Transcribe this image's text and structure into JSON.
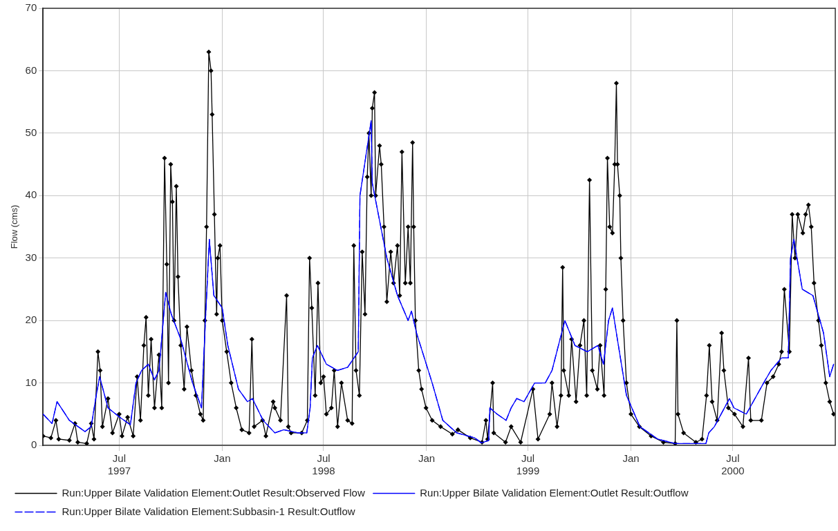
{
  "chart_data": {
    "type": "line",
    "ylabel": "Flow (cms)",
    "xlim": [
      "1997-02-15",
      "2000-12-31"
    ],
    "ylim": [
      0,
      70
    ],
    "yticks": [
      0,
      10,
      20,
      30,
      40,
      50,
      60,
      70
    ],
    "xticks": [
      {
        "value": "1997-07-01",
        "label": "Jul\n1997"
      },
      {
        "value": "1998-01-01",
        "label": "Jan"
      },
      {
        "value": "1998-07-01",
        "label": "Jul\n1998"
      },
      {
        "value": "1999-01-01",
        "label": "Jan"
      },
      {
        "value": "1999-07-01",
        "label": "Jul\n1999"
      },
      {
        "value": "2000-01-01",
        "label": "Jan"
      },
      {
        "value": "2000-07-01",
        "label": "Jul\n2000"
      }
    ],
    "grid": true,
    "legend": "bottom",
    "series": [
      {
        "name": "Run:Upper Bilate Validation Element:Outlet Result:Observed Flow",
        "color": "#000000",
        "marker": "diamond",
        "line_style": "solid",
        "x": [
          "1997-02-15",
          "1997-03-01",
          "1997-03-10",
          "1997-03-15",
          "1997-04-03",
          "1997-04-13",
          "1997-04-18",
          "1997-05-04",
          "1997-05-12",
          "1997-05-17",
          "1997-05-24",
          "1997-05-28",
          "1997-06-01",
          "1997-06-11",
          "1997-06-19",
          "1997-07-01",
          "1997-07-06",
          "1997-07-16",
          "1997-07-26",
          "1997-08-02",
          "1997-08-08",
          "1997-08-14",
          "1997-08-18",
          "1997-08-22",
          "1997-08-27",
          "1997-09-02",
          "1997-09-10",
          "1997-09-15",
          "1997-09-20",
          "1997-09-24",
          "1997-09-27",
          "1997-10-01",
          "1997-10-04",
          "1997-10-07",
          "1997-10-11",
          "1997-10-14",
          "1997-10-19",
          "1997-10-25",
          "1997-10-30",
          "1997-11-07",
          "1997-11-15",
          "1997-11-23",
          "1997-11-28",
          "1997-12-01",
          "1997-12-04",
          "1997-12-08",
          "1997-12-12",
          "1997-12-14",
          "1997-12-18",
          "1997-12-22",
          "1997-12-24",
          "1997-12-28",
          "1998-01-01",
          "1998-01-09",
          "1998-01-17",
          "1998-01-26",
          "1998-02-05",
          "1998-02-18",
          "1998-02-23",
          "1998-02-27",
          "1998-03-14",
          "1998-03-20",
          "1998-04-02",
          "1998-04-05",
          "1998-04-15",
          "1998-04-26",
          "1998-04-29",
          "1998-05-04",
          "1998-05-23",
          "1998-06-02",
          "1998-06-06",
          "1998-06-10",
          "1998-06-16",
          "1998-06-21",
          "1998-06-26",
          "1998-07-01",
          "1998-07-06",
          "1998-07-15",
          "1998-07-20",
          "1998-07-26",
          "1998-08-02",
          "1998-08-13",
          "1998-08-21",
          "1998-08-24",
          "1998-08-28",
          "1998-09-03",
          "1998-09-08",
          "1998-09-13",
          "1998-09-17",
          "1998-09-20",
          "1998-09-24",
          "1998-09-26",
          "1998-09-30",
          "1998-10-02",
          "1998-10-09",
          "1998-10-12",
          "1998-10-17",
          "1998-10-22",
          "1998-10-29",
          "1998-11-03",
          "1998-11-10",
          "1998-11-14",
          "1998-11-18",
          "1998-11-24",
          "1998-11-29",
          "1998-12-03",
          "1998-12-07",
          "1998-12-09",
          "1998-12-12",
          "1998-12-18",
          "1998-12-23",
          "1998-12-31",
          "1999-01-11",
          "1999-01-26",
          "1999-02-16",
          "1999-02-26",
          "1999-03-20",
          "1999-04-10",
          "1999-04-17",
          "1999-04-20",
          "1999-04-29",
          "1999-05-01",
          "1999-05-22",
          "1999-06-01",
          "1999-06-18",
          "1999-07-10",
          "1999-07-19",
          "1999-08-09",
          "1999-08-13",
          "1999-08-22",
          "1999-08-29",
          "1999-09-01",
          "1999-09-03",
          "1999-09-12",
          "1999-09-17",
          "1999-09-25",
          "1999-10-02",
          "1999-10-09",
          "1999-10-14",
          "1999-10-19",
          "1999-10-24",
          "1999-11-02",
          "1999-11-07",
          "1999-11-14",
          "1999-11-17",
          "1999-11-20",
          "1999-11-24",
          "1999-11-29",
          "1999-12-03",
          "1999-12-06",
          "1999-12-08",
          "1999-12-12",
          "1999-12-14",
          "1999-12-18",
          "1999-12-24",
          "2000-01-01",
          "2000-01-16",
          "2000-02-06",
          "2000-02-28",
          "2000-03-20",
          "2000-03-23",
          "2000-03-25",
          "2000-04-04",
          "2000-04-26",
          "2000-05-07",
          "2000-05-15",
          "2000-05-20",
          "2000-05-25",
          "2000-06-03",
          "2000-06-11",
          "2000-06-15",
          "2000-06-23",
          "2000-07-04",
          "2000-07-19",
          "2000-07-29",
          "2000-08-02",
          "2000-08-21",
          "2000-08-31",
          "2000-09-11",
          "2000-09-21",
          "2000-09-26",
          "2000-10-01",
          "2000-10-10",
          "2000-10-15",
          "2000-10-20",
          "2000-10-25",
          "2000-11-03",
          "2000-11-08",
          "2000-11-13",
          "2000-11-18",
          "2000-11-23",
          "2000-12-01",
          "2000-12-06",
          "2000-12-14",
          "2000-12-21",
          "2000-12-28"
        ],
        "values": [
          1.5,
          1.2,
          4,
          1,
          0.8,
          3.5,
          0.5,
          0.3,
          3.5,
          1,
          15,
          12,
          3,
          7.5,
          2,
          5,
          1.5,
          4.5,
          1.5,
          11,
          4,
          16,
          20.5,
          8,
          17,
          6,
          14.5,
          6,
          46,
          29,
          10,
          45,
          39,
          20,
          41.5,
          27,
          16,
          9,
          19,
          12,
          8,
          5,
          4,
          20,
          35,
          63,
          60,
          53,
          37,
          21,
          30,
          32,
          20,
          15,
          10,
          6,
          2.5,
          2,
          17,
          3,
          4,
          1.5,
          7,
          6,
          4,
          24,
          3,
          2,
          2,
          4,
          30,
          22,
          8,
          26,
          10,
          11,
          5,
          6,
          12,
          3,
          10,
          4,
          3.5,
          32,
          12,
          8,
          31,
          21,
          43,
          50,
          40,
          54,
          56.5,
          40,
          48,
          45,
          35,
          23,
          31,
          26,
          32,
          24,
          47,
          26,
          35,
          26,
          48.5,
          35,
          20,
          12,
          9,
          6,
          4,
          3,
          1.8,
          2.5,
          1.2,
          0.5,
          4,
          1,
          10,
          2,
          0.5,
          3,
          0.5,
          9,
          1,
          5,
          10,
          3,
          8,
          28.5,
          12,
          8,
          17,
          7,
          16,
          20,
          8,
          42.5,
          12,
          9,
          16,
          8,
          25,
          46,
          35,
          34,
          45,
          58,
          45,
          40,
          30,
          20,
          10,
          5,
          3,
          1.5,
          0.5,
          0.3,
          20,
          5,
          2,
          0.5,
          1,
          8,
          16,
          7,
          4,
          18,
          12,
          6,
          5,
          3,
          14,
          4,
          4,
          10,
          11,
          13,
          15,
          25,
          15,
          37,
          30,
          37,
          34,
          37,
          38.5,
          35,
          26,
          20,
          16,
          10,
          7,
          5
        ]
      },
      {
        "name": "Run:Upper Bilate Validation Element:Outlet Result:Outflow",
        "color": "#0000ff",
        "marker": "none",
        "line_style": "solid",
        "x": [
          "1997-02-15",
          "1997-03-03",
          "1997-03-12",
          "1997-04-03",
          "1997-05-01",
          "1997-05-12",
          "1997-05-20",
          "1997-05-27",
          "1997-06-11",
          "1997-07-02",
          "1997-07-21",
          "1997-07-31",
          "1997-08-10",
          "1997-08-22",
          "1997-09-02",
          "1997-09-10",
          "1997-09-22",
          "1997-10-02",
          "1997-10-19",
          "1997-11-09",
          "1997-11-25",
          "1997-12-02",
          "1997-12-09",
          "1997-12-17",
          "1998-01-01",
          "1998-01-11",
          "1998-01-30",
          "1998-02-15",
          "1998-02-24",
          "1998-03-15",
          "1998-04-05",
          "1998-04-21",
          "1998-05-16",
          "1998-06-01",
          "1998-06-07",
          "1998-06-11",
          "1998-06-20",
          "1998-07-06",
          "1998-07-26",
          "1998-08-13",
          "1998-09-01",
          "1998-09-04",
          "1998-09-24",
          "1998-09-26",
          "1998-10-22",
          "1998-11-10",
          "1998-11-29",
          "1998-12-05",
          "1998-12-14",
          "1999-01-11",
          "1999-01-30",
          "1999-02-24",
          "1999-03-28",
          "1999-04-09",
          "1999-04-22",
          "1999-04-24",
          "1999-05-07",
          "1999-05-23",
          "1999-06-01",
          "1999-06-11",
          "1999-06-24",
          "1999-07-13",
          "1999-08-01",
          "1999-08-13",
          "1999-09-05",
          "1999-09-23",
          "1999-10-15",
          "1999-11-03",
          "1999-11-13",
          "1999-11-22",
          "1999-11-29",
          "1999-12-06",
          "1999-12-24",
          "2000-01-17",
          "2000-02-18",
          "2000-03-20",
          "2000-05-14",
          "2000-05-19",
          "2000-05-29",
          "2000-06-25",
          "2000-07-03",
          "2000-07-25",
          "2000-08-25",
          "2000-09-07",
          "2000-09-26",
          "2000-10-08",
          "2000-10-12",
          "2000-10-18",
          "2000-11-02",
          "2000-11-21",
          "2000-12-10",
          "2000-12-21",
          "2000-12-28"
        ],
        "values": [
          5,
          3.5,
          7,
          4,
          2.2,
          3,
          7.5,
          11,
          6,
          4.5,
          3.3,
          10,
          12,
          13,
          10.5,
          12,
          24.5,
          21,
          17,
          10,
          6,
          20,
          33,
          24,
          22,
          16,
          9,
          7,
          7.5,
          4,
          2,
          2.5,
          2,
          2,
          6,
          14,
          16,
          13,
          12,
          12.5,
          15,
          40,
          52,
          42,
          30,
          24,
          20,
          21.5,
          18,
          10,
          4,
          2,
          1.2,
          0.4,
          0.8,
          6,
          5,
          4,
          6,
          7.5,
          7,
          10,
          10,
          12,
          20,
          16,
          15,
          16,
          13,
          20,
          22,
          18,
          8,
          3,
          1,
          0.3,
          0.3,
          2,
          3,
          7.5,
          6,
          5,
          10,
          12,
          14,
          14,
          30,
          33,
          25,
          24,
          18,
          11,
          13
        ]
      },
      {
        "name": "Run:Upper Bilate Validation Element:Subbasin-1 Result:Outflow",
        "color": "#0000ff",
        "marker": "none",
        "line_style": "dashed",
        "x": [
          "1997-02-15",
          "1997-03-03",
          "1997-03-12",
          "1997-04-03",
          "1997-05-01",
          "1997-05-12",
          "1997-05-20",
          "1997-05-27",
          "1997-06-11",
          "1997-07-02",
          "1997-07-21",
          "1997-07-31",
          "1997-08-10",
          "1997-08-22",
          "1997-09-02",
          "1997-09-10",
          "1997-09-22",
          "1997-10-02",
          "1997-10-19",
          "1997-11-09",
          "1997-11-25",
          "1997-12-02",
          "1997-12-09",
          "1997-12-17",
          "1998-01-01",
          "1998-01-11",
          "1998-01-30",
          "1998-02-15",
          "1998-02-24",
          "1998-03-15",
          "1998-04-05",
          "1998-04-21",
          "1998-05-16",
          "1998-06-01",
          "1998-06-07",
          "1998-06-11",
          "1998-06-20",
          "1998-07-06",
          "1998-07-26",
          "1998-08-13",
          "1998-09-01",
          "1998-09-04",
          "1998-09-24",
          "1998-09-26",
          "1998-10-22",
          "1998-11-10",
          "1998-11-29",
          "1998-12-05",
          "1998-12-14",
          "1999-01-11",
          "1999-01-30",
          "1999-02-24",
          "1999-03-28",
          "1999-04-09",
          "1999-04-22",
          "1999-04-24",
          "1999-05-07",
          "1999-05-23",
          "1999-06-01",
          "1999-06-11",
          "1999-06-24",
          "1999-07-13",
          "1999-08-01",
          "1999-08-13",
          "1999-09-05",
          "1999-09-23",
          "1999-10-15",
          "1999-11-03",
          "1999-11-13",
          "1999-11-22",
          "1999-11-29",
          "1999-12-06",
          "1999-12-24",
          "2000-01-17",
          "2000-02-18",
          "2000-03-20",
          "2000-05-14",
          "2000-05-19",
          "2000-05-29",
          "2000-06-25",
          "2000-07-03",
          "2000-07-25",
          "2000-08-25",
          "2000-09-07",
          "2000-09-26",
          "2000-10-08",
          "2000-10-12",
          "2000-10-18",
          "2000-11-02",
          "2000-11-21",
          "2000-12-10",
          "2000-12-21",
          "2000-12-28"
        ],
        "values": [
          5,
          3.5,
          7,
          4,
          2.2,
          3,
          7.5,
          11,
          6,
          4.5,
          3.3,
          10,
          12,
          13,
          10.5,
          12,
          24.5,
          21,
          17,
          10,
          6,
          20,
          33,
          24,
          22,
          16,
          9,
          7,
          7.5,
          4,
          2,
          2.5,
          2,
          2,
          6,
          14,
          16,
          13,
          12,
          12.5,
          15,
          40,
          52,
          42,
          30,
          24,
          20,
          21.5,
          18,
          10,
          4,
          2,
          1.2,
          0.4,
          0.8,
          6,
          5,
          4,
          6,
          7.5,
          7,
          10,
          10,
          12,
          20,
          16,
          15,
          16,
          13,
          20,
          22,
          18,
          8,
          3,
          1,
          0.3,
          0.3,
          2,
          3,
          7.5,
          6,
          5,
          10,
          12,
          14,
          14,
          30,
          33,
          25,
          24,
          18,
          11,
          13
        ]
      }
    ]
  }
}
